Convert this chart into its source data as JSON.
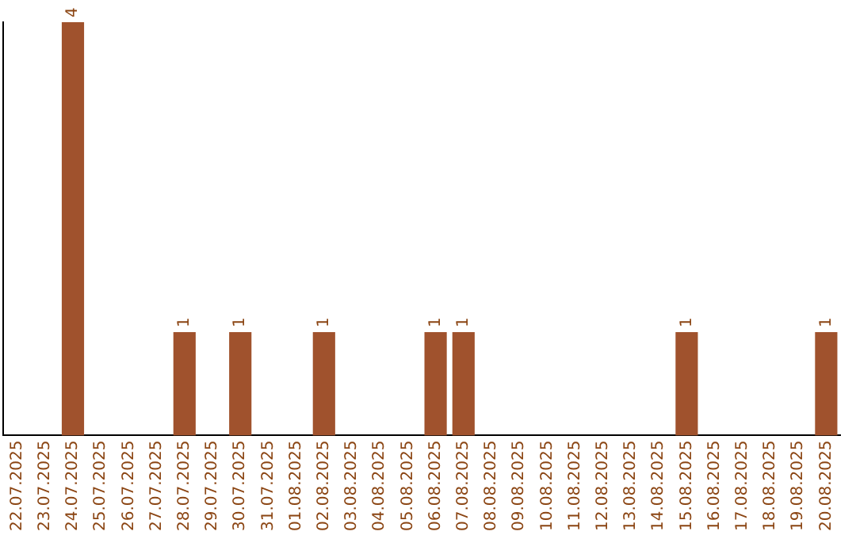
{
  "chart_data": {
    "type": "bar",
    "categories": [
      "22.07.2025",
      "23.07.2025",
      "24.07.2025",
      "25.07.2025",
      "26.07.2025",
      "27.07.2025",
      "28.07.2025",
      "29.07.2025",
      "30.07.2025",
      "31.07.2025",
      "01.08.2025",
      "02.08.2025",
      "03.08.2025",
      "04.08.2025",
      "05.08.2025",
      "06.08.2025",
      "07.08.2025",
      "08.08.2025",
      "09.08.2025",
      "10.08.2025",
      "11.08.2025",
      "12.08.2025",
      "13.08.2025",
      "14.08.2025",
      "15.08.2025",
      "16.08.2025",
      "17.08.2025",
      "18.08.2025",
      "19.08.2025",
      "20.08.2025"
    ],
    "values": [
      0,
      0,
      4,
      0,
      0,
      0,
      1,
      0,
      1,
      0,
      0,
      1,
      0,
      0,
      0,
      1,
      1,
      0,
      0,
      0,
      0,
      0,
      0,
      0,
      1,
      0,
      0,
      0,
      0,
      1
    ],
    "value_labels": [
      null,
      null,
      "4",
      null,
      null,
      null,
      "1",
      null,
      "1",
      null,
      null,
      "1",
      null,
      null,
      null,
      "1",
      "1",
      null,
      null,
      null,
      null,
      null,
      null,
      null,
      "1",
      null,
      null,
      null,
      null,
      "1"
    ],
    "color": "#a0522d",
    "ylim": [
      0,
      4
    ],
    "tick_labels": "x",
    "grid": false,
    "legend": false
  }
}
